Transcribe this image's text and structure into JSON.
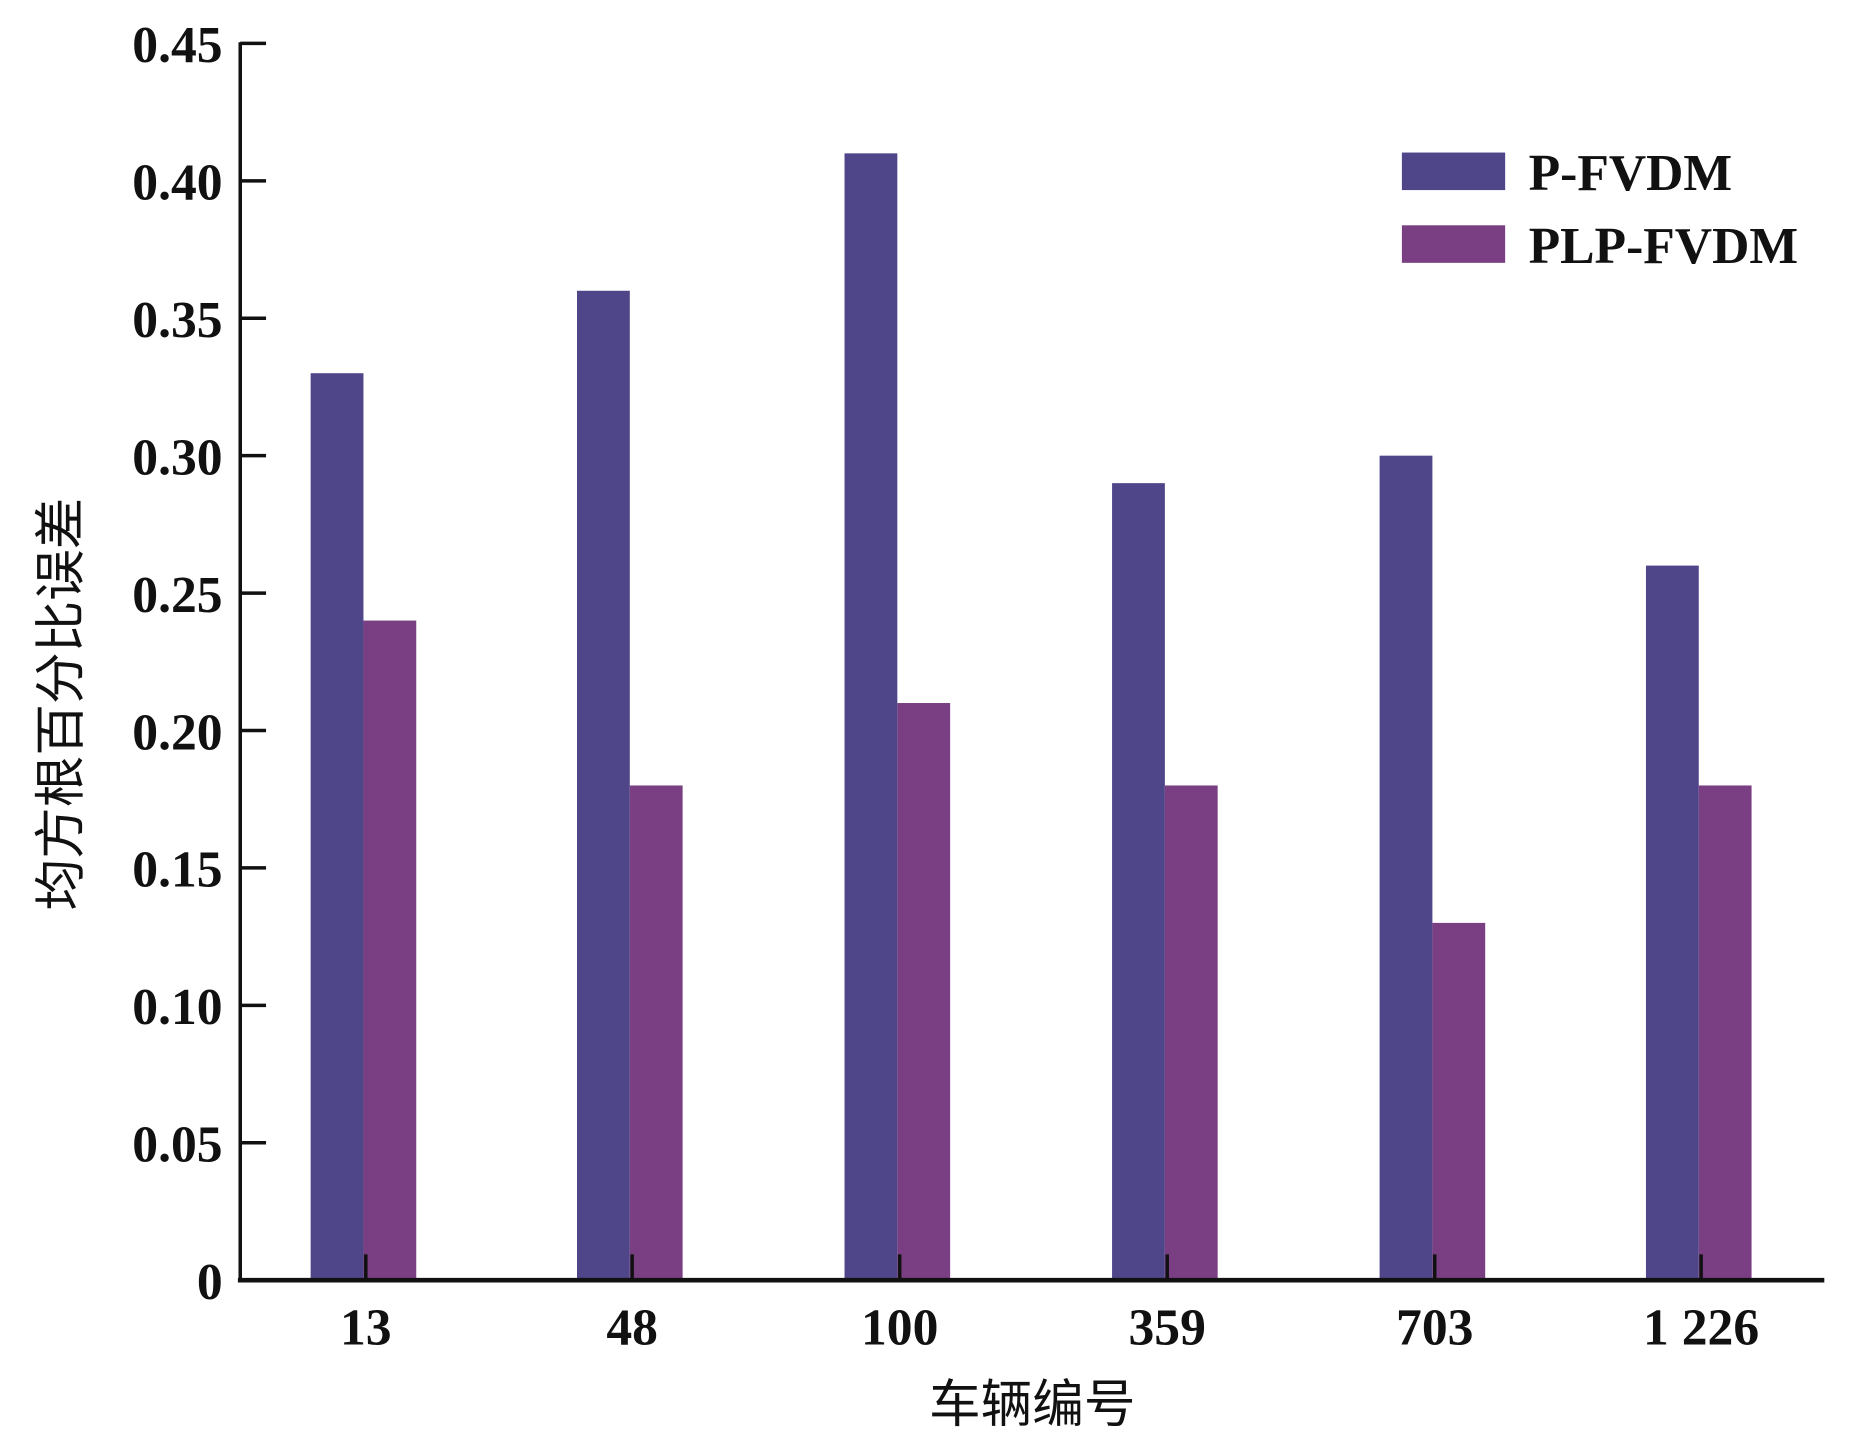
{
  "chart_data": {
    "type": "bar",
    "title": "",
    "xlabel": "车辆编号",
    "ylabel": "均方根百分比误差",
    "categories": [
      "13",
      "48",
      "100",
      "359",
      "703",
      "1 226"
    ],
    "series": [
      {
        "name": "P-FVDM",
        "color": "#4f4589",
        "values": [
          0.33,
          0.36,
          0.41,
          0.29,
          0.3,
          0.26
        ]
      },
      {
        "name": "PLP-FVDM",
        "color": "#7a3f82",
        "values": [
          0.24,
          0.18,
          0.21,
          0.18,
          0.13,
          0.18
        ]
      }
    ],
    "ylim": [
      0,
      0.45
    ],
    "yticks": [
      "0",
      "0.05",
      "0.10",
      "0.15",
      "0.20",
      "0.25",
      "0.30",
      "0.35",
      "0.40",
      "0.45"
    ],
    "grid": false,
    "legend": "top-right"
  }
}
